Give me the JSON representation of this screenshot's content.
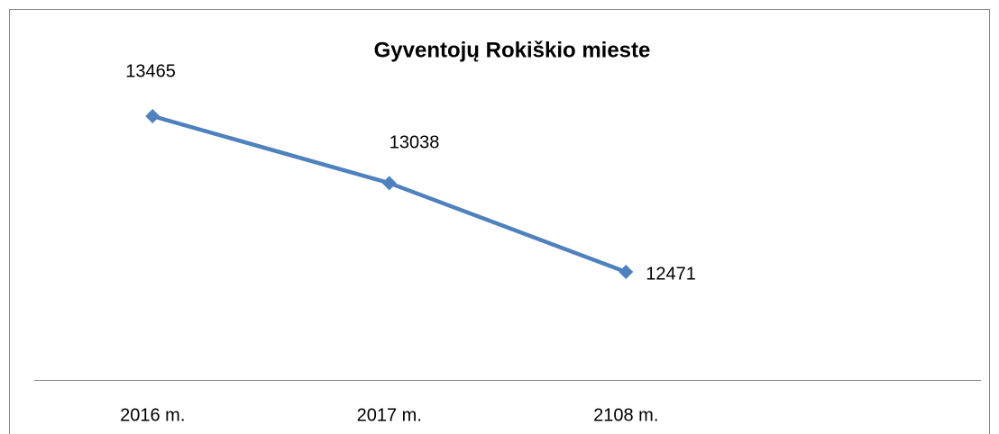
{
  "chart_data": {
    "type": "line",
    "title": "Gyventojų Rokiškio mieste",
    "categories": [
      "2016 m.",
      "2017 m.",
      "2108 m.",
      null
    ],
    "series": [
      {
        "name": null,
        "color": "#4f81bd",
        "values": [
          13465,
          13038,
          12471,
          null
        ]
      }
    ]
  }
}
